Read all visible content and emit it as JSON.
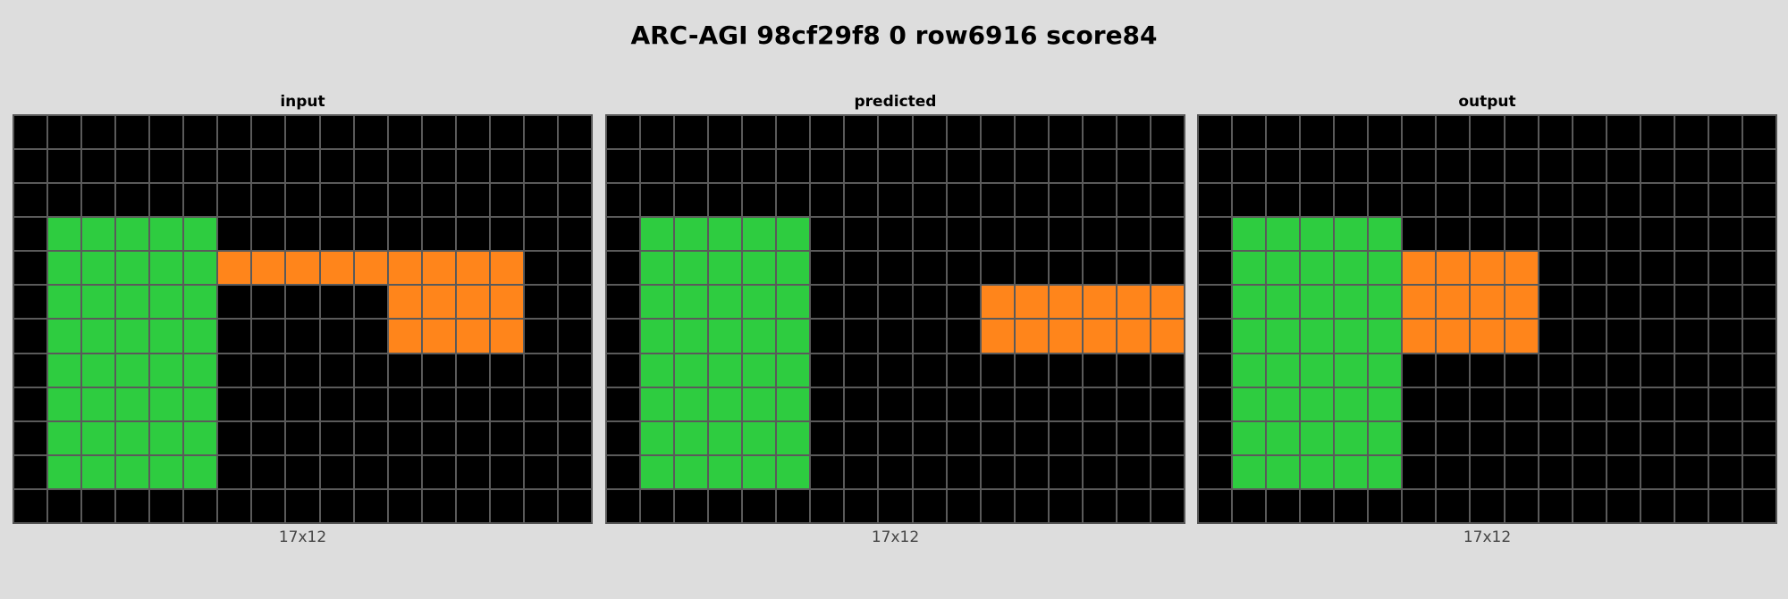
{
  "title": "ARC-AGI 98cf29f8 0 row6916 score84",
  "palette": {
    "0": "#000000",
    "3": "#2ecc40",
    "7": "#ff851b"
  },
  "panels": [
    {
      "label": "input",
      "dims": "17x12",
      "grid": [
        [
          0,
          0,
          0,
          0,
          0,
          0,
          0,
          0,
          0,
          0,
          0,
          0,
          0,
          0,
          0,
          0,
          0
        ],
        [
          0,
          0,
          0,
          0,
          0,
          0,
          0,
          0,
          0,
          0,
          0,
          0,
          0,
          0,
          0,
          0,
          0
        ],
        [
          0,
          0,
          0,
          0,
          0,
          0,
          0,
          0,
          0,
          0,
          0,
          0,
          0,
          0,
          0,
          0,
          0
        ],
        [
          0,
          3,
          3,
          3,
          3,
          3,
          0,
          0,
          0,
          0,
          0,
          0,
          0,
          0,
          0,
          0,
          0
        ],
        [
          0,
          3,
          3,
          3,
          3,
          3,
          7,
          7,
          7,
          7,
          7,
          7,
          7,
          7,
          7,
          0,
          0
        ],
        [
          0,
          3,
          3,
          3,
          3,
          3,
          0,
          0,
          0,
          0,
          0,
          7,
          7,
          7,
          7,
          0,
          0
        ],
        [
          0,
          3,
          3,
          3,
          3,
          3,
          0,
          0,
          0,
          0,
          0,
          7,
          7,
          7,
          7,
          0,
          0
        ],
        [
          0,
          3,
          3,
          3,
          3,
          3,
          0,
          0,
          0,
          0,
          0,
          0,
          0,
          0,
          0,
          0,
          0
        ],
        [
          0,
          3,
          3,
          3,
          3,
          3,
          0,
          0,
          0,
          0,
          0,
          0,
          0,
          0,
          0,
          0,
          0
        ],
        [
          0,
          3,
          3,
          3,
          3,
          3,
          0,
          0,
          0,
          0,
          0,
          0,
          0,
          0,
          0,
          0,
          0
        ],
        [
          0,
          3,
          3,
          3,
          3,
          3,
          0,
          0,
          0,
          0,
          0,
          0,
          0,
          0,
          0,
          0,
          0
        ],
        [
          0,
          0,
          0,
          0,
          0,
          0,
          0,
          0,
          0,
          0,
          0,
          0,
          0,
          0,
          0,
          0,
          0
        ]
      ]
    },
    {
      "label": "predicted",
      "dims": "17x12",
      "grid": [
        [
          0,
          0,
          0,
          0,
          0,
          0,
          0,
          0,
          0,
          0,
          0,
          0,
          0,
          0,
          0,
          0,
          0
        ],
        [
          0,
          0,
          0,
          0,
          0,
          0,
          0,
          0,
          0,
          0,
          0,
          0,
          0,
          0,
          0,
          0,
          0
        ],
        [
          0,
          0,
          0,
          0,
          0,
          0,
          0,
          0,
          0,
          0,
          0,
          0,
          0,
          0,
          0,
          0,
          0
        ],
        [
          0,
          3,
          3,
          3,
          3,
          3,
          0,
          0,
          0,
          0,
          0,
          0,
          0,
          0,
          0,
          0,
          0
        ],
        [
          0,
          3,
          3,
          3,
          3,
          3,
          0,
          0,
          0,
          0,
          0,
          0,
          0,
          0,
          0,
          0,
          0
        ],
        [
          0,
          3,
          3,
          3,
          3,
          3,
          0,
          0,
          0,
          0,
          0,
          7,
          7,
          7,
          7,
          7,
          7
        ],
        [
          0,
          3,
          3,
          3,
          3,
          3,
          0,
          0,
          0,
          0,
          0,
          7,
          7,
          7,
          7,
          7,
          7
        ],
        [
          0,
          3,
          3,
          3,
          3,
          3,
          0,
          0,
          0,
          0,
          0,
          0,
          0,
          0,
          0,
          0,
          0
        ],
        [
          0,
          3,
          3,
          3,
          3,
          3,
          0,
          0,
          0,
          0,
          0,
          0,
          0,
          0,
          0,
          0,
          0
        ],
        [
          0,
          3,
          3,
          3,
          3,
          3,
          0,
          0,
          0,
          0,
          0,
          0,
          0,
          0,
          0,
          0,
          0
        ],
        [
          0,
          3,
          3,
          3,
          3,
          3,
          0,
          0,
          0,
          0,
          0,
          0,
          0,
          0,
          0,
          0,
          0
        ],
        [
          0,
          0,
          0,
          0,
          0,
          0,
          0,
          0,
          0,
          0,
          0,
          0,
          0,
          0,
          0,
          0,
          0
        ]
      ]
    },
    {
      "label": "output",
      "dims": "17x12",
      "grid": [
        [
          0,
          0,
          0,
          0,
          0,
          0,
          0,
          0,
          0,
          0,
          0,
          0,
          0,
          0,
          0,
          0,
          0
        ],
        [
          0,
          0,
          0,
          0,
          0,
          0,
          0,
          0,
          0,
          0,
          0,
          0,
          0,
          0,
          0,
          0,
          0
        ],
        [
          0,
          0,
          0,
          0,
          0,
          0,
          0,
          0,
          0,
          0,
          0,
          0,
          0,
          0,
          0,
          0,
          0
        ],
        [
          0,
          3,
          3,
          3,
          3,
          3,
          0,
          0,
          0,
          0,
          0,
          0,
          0,
          0,
          0,
          0,
          0
        ],
        [
          0,
          3,
          3,
          3,
          3,
          3,
          7,
          7,
          7,
          7,
          0,
          0,
          0,
          0,
          0,
          0,
          0
        ],
        [
          0,
          3,
          3,
          3,
          3,
          3,
          7,
          7,
          7,
          7,
          0,
          0,
          0,
          0,
          0,
          0,
          0
        ],
        [
          0,
          3,
          3,
          3,
          3,
          3,
          7,
          7,
          7,
          7,
          0,
          0,
          0,
          0,
          0,
          0,
          0
        ],
        [
          0,
          3,
          3,
          3,
          3,
          3,
          0,
          0,
          0,
          0,
          0,
          0,
          0,
          0,
          0,
          0,
          0
        ],
        [
          0,
          3,
          3,
          3,
          3,
          3,
          0,
          0,
          0,
          0,
          0,
          0,
          0,
          0,
          0,
          0,
          0
        ],
        [
          0,
          3,
          3,
          3,
          3,
          3,
          0,
          0,
          0,
          0,
          0,
          0,
          0,
          0,
          0,
          0,
          0
        ],
        [
          0,
          3,
          3,
          3,
          3,
          3,
          0,
          0,
          0,
          0,
          0,
          0,
          0,
          0,
          0,
          0,
          0
        ],
        [
          0,
          0,
          0,
          0,
          0,
          0,
          0,
          0,
          0,
          0,
          0,
          0,
          0,
          0,
          0,
          0,
          0
        ]
      ]
    }
  ]
}
